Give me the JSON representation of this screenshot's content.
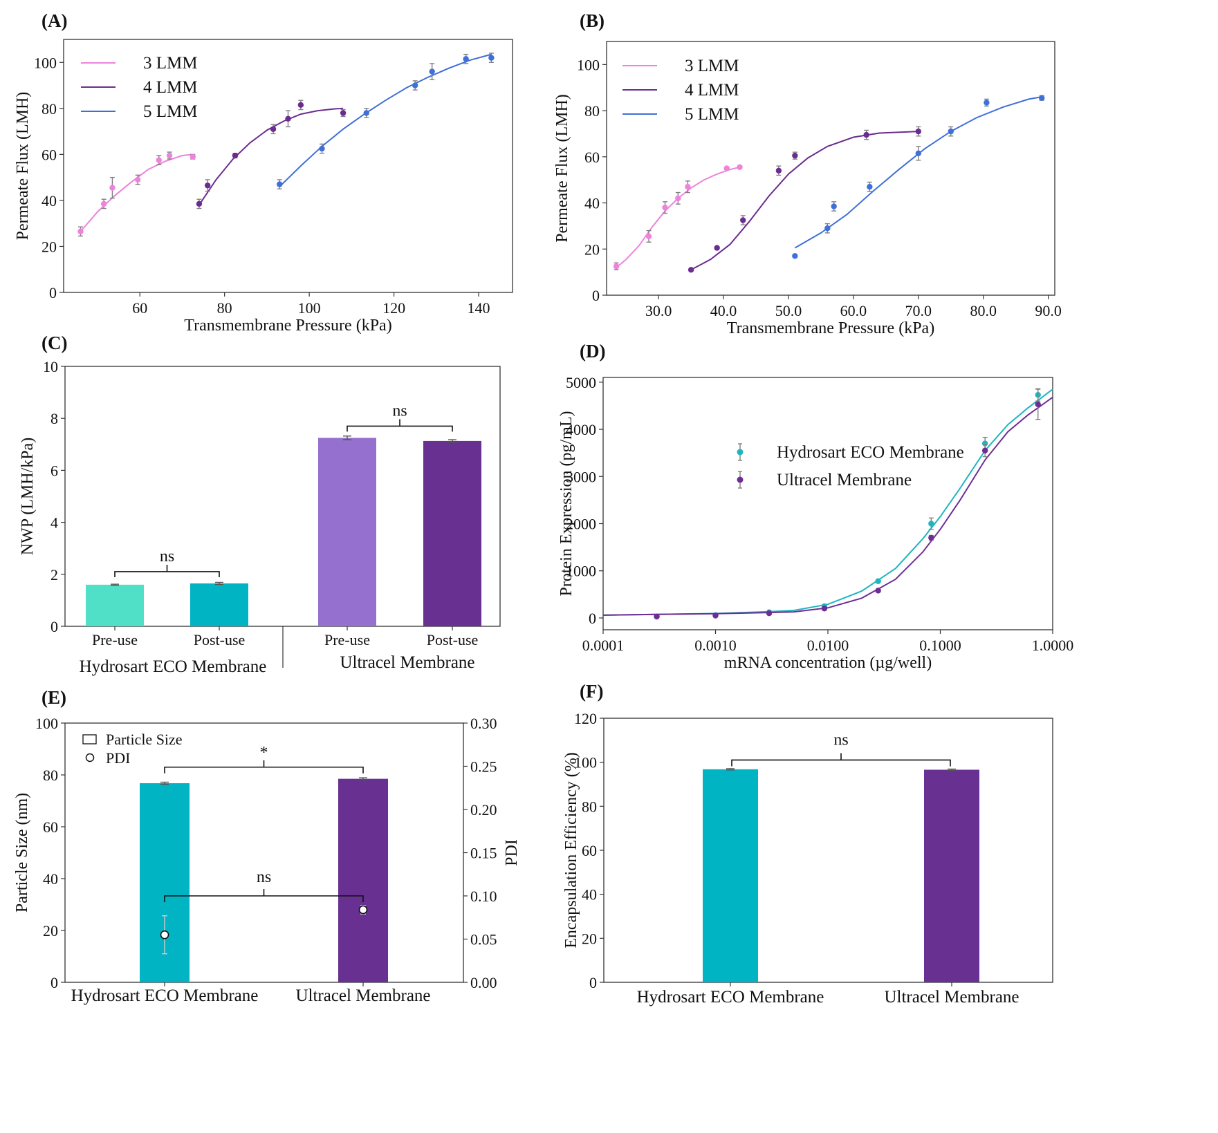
{
  "figure": {
    "panels": [
      "(A)",
      "(B)",
      "(C)",
      "(D)",
      "(E)",
      "(F)"
    ]
  },
  "colors": {
    "lmm3": "#ee82dc",
    "lmm4": "#6b2c8f",
    "lmm5": "#3f6fd8",
    "teal": "#00b4c4",
    "teal_light": "#50e0c8",
    "purple": "#683191",
    "purple_light": "#9570cf",
    "errbar": "#808080"
  },
  "chart_data": [
    {
      "id": "A",
      "label": "(A)",
      "type": "scatter",
      "xlabel": "Transmembrane Pressure (kPa)",
      "ylabel": "Permeate Flux (LMH)",
      "xlim": [
        42,
        148
      ],
      "ylim": [
        0,
        110
      ],
      "xticks": [
        60,
        80,
        100,
        120,
        140
      ],
      "xtick_labels": [
        "60",
        "80",
        "100",
        "120",
        "140"
      ],
      "yticks": [
        0,
        20,
        40,
        60,
        80,
        100
      ],
      "ytick_labels": [
        "0",
        "20",
        "40",
        "60",
        "80",
        "100"
      ],
      "legend": "top-left",
      "series": [
        {
          "name": "3 LMM",
          "color": "#ee82dc",
          "x": [
            46,
            51.5,
            53.5,
            59.5,
            64.5,
            67,
            72.5
          ],
          "y": [
            26.5,
            38.5,
            45.5,
            49,
            57.5,
            59.5,
            59
          ],
          "err": [
            2,
            2,
            4.5,
            2,
            2,
            1.5,
            1
          ],
          "fit_x": [
            46,
            50,
            54,
            58,
            62,
            66,
            70,
            72.5
          ],
          "fit_y": [
            26.5,
            35,
            42,
            48,
            53.5,
            57,
            59.5,
            60
          ]
        },
        {
          "name": "4 LMM",
          "color": "#6b2c8f",
          "x": [
            74,
            76,
            82.5,
            91.5,
            95,
            98,
            108
          ],
          "y": [
            38.5,
            46.5,
            59.5,
            71,
            75.5,
            81.5,
            78
          ],
          "err": [
            2,
            2.5,
            1,
            2,
            3.5,
            2,
            1.5
          ],
          "fit_x": [
            74,
            78,
            82,
            86,
            90,
            94,
            98,
            102,
            106,
            108
          ],
          "fit_y": [
            38,
            49,
            58,
            65,
            70.5,
            74.5,
            77.5,
            79,
            79.8,
            80
          ]
        },
        {
          "name": "5 LMM",
          "color": "#3f6fd8",
          "x": [
            93,
            103,
            113.5,
            125,
            129,
            137,
            143
          ],
          "y": [
            47,
            62.5,
            78,
            90,
            96,
            101.5,
            102
          ],
          "err": [
            2,
            2,
            2,
            2,
            3.5,
            2,
            2
          ],
          "fit_x": [
            93,
            98,
            103,
            108,
            113,
            118,
            123,
            128,
            133,
            138,
            143
          ],
          "fit_y": [
            46,
            55,
            63.5,
            71,
            77.5,
            83.5,
            89,
            93.5,
            97.5,
            101,
            103.5
          ]
        }
      ]
    },
    {
      "id": "B",
      "label": "(B)",
      "type": "scatter",
      "xlabel": "Transmembrane Pressure (kPa)",
      "ylabel": "Permeate Flux (LMH)",
      "xlim": [
        22,
        91
      ],
      "ylim": [
        0,
        110
      ],
      "xticks": [
        30,
        40,
        50,
        60,
        70,
        80,
        90
      ],
      "xtick_labels": [
        "30.0",
        "40.0",
        "50.0",
        "60.0",
        "70.0",
        "80.0",
        "90.0"
      ],
      "yticks": [
        0,
        20,
        40,
        60,
        80,
        100
      ],
      "ytick_labels": [
        "0",
        "20",
        "40",
        "60",
        "80",
        "100"
      ],
      "legend": "top-left",
      "series": [
        {
          "name": "3 LMM",
          "color": "#ee82dc",
          "x": [
            23.5,
            28.5,
            31,
            33,
            34.5,
            40.5,
            42.5
          ],
          "y": [
            12.5,
            25.5,
            38,
            42,
            47,
            55,
            55.5
          ],
          "err": [
            1.5,
            2.5,
            2.5,
            2.5,
            2.5,
            0.5,
            0.5
          ],
          "fit_x": [
            23.5,
            25,
            27,
            29,
            31,
            33,
            35,
            37,
            39,
            41,
            42.5
          ],
          "fit_y": [
            12,
            15.5,
            21.5,
            29.5,
            36.5,
            42,
            46.5,
            50,
            52.5,
            54.5,
            55.5
          ]
        },
        {
          "name": "4 LMM",
          "color": "#6b2c8f",
          "x": [
            35,
            39,
            43,
            48.5,
            51,
            62,
            70
          ],
          "y": [
            11,
            20.5,
            32.5,
            54,
            60.5,
            69.5,
            71
          ],
          "err": [
            0.5,
            0.5,
            2,
            2,
            1.5,
            2,
            2
          ],
          "fit_x": [
            35,
            38,
            41,
            44,
            47,
            50,
            53,
            56,
            60,
            64,
            70
          ],
          "fit_y": [
            11,
            15.5,
            22,
            32,
            43,
            52.5,
            59.5,
            64.5,
            68.5,
            70.3,
            71
          ]
        },
        {
          "name": "5 LMM",
          "color": "#3f6fd8",
          "x": [
            51,
            56,
            57,
            62.5,
            70,
            75,
            80.5,
            89
          ],
          "y": [
            17,
            29,
            38.5,
            47,
            61.5,
            71,
            83.5,
            85.5
          ],
          "err": [
            0.5,
            2,
            2,
            2,
            3,
            2,
            1.5,
            1
          ],
          "fit_x": [
            51,
            55,
            59,
            63,
            67,
            71,
            75,
            79,
            83,
            87,
            89
          ],
          "fit_y": [
            20.5,
            27,
            35,
            45,
            54.5,
            63.5,
            71,
            77,
            81.5,
            85,
            86
          ]
        }
      ]
    },
    {
      "id": "C",
      "label": "(C)",
      "type": "bar",
      "ylabel": "NWP (LMH/kPa)",
      "ylim": [
        0,
        10
      ],
      "yticks": [
        0,
        2,
        4,
        6,
        8,
        10
      ],
      "ytick_labels": [
        "0",
        "2",
        "4",
        "6",
        "8",
        "10"
      ],
      "categories": [
        "Pre-use",
        "Post-use",
        "Pre-use",
        "Post-use"
      ],
      "values": [
        1.6,
        1.65,
        7.25,
        7.13
      ],
      "errors": [
        0.02,
        0.04,
        0.07,
        0.05
      ],
      "colors": [
        "#50e0c8",
        "#00b4c4",
        "#9570cf",
        "#683191"
      ],
      "groups": [
        "Hydrosart ECO Membrane",
        "Ultracel Membrane"
      ],
      "significance": [
        {
          "between": [
            0,
            1
          ],
          "text": "ns"
        },
        {
          "between": [
            2,
            3
          ],
          "text": "ns"
        }
      ]
    },
    {
      "id": "D",
      "label": "(D)",
      "type": "scatter",
      "xlabel": "mRNA concentration (µg/well)",
      "ylabel": "Protein Expression (pg/mL)",
      "xscale": "log",
      "xlim": [
        0.0001,
        1.0
      ],
      "ylim": [
        -250,
        5100
      ],
      "xticks": [
        0.0001,
        0.001,
        0.01,
        0.1,
        1.0
      ],
      "xtick_labels": [
        "0.0001",
        "0.0010",
        "0.0100",
        "0.1000",
        "1.0000"
      ],
      "yticks": [
        0,
        1000,
        2000,
        3000,
        4000,
        5000
      ],
      "ytick_labels": [
        "0",
        "1000",
        "2000",
        "3000",
        "4000",
        "5000"
      ],
      "legend": "top-left",
      "series": [
        {
          "name": "Hydrosart ECO Membrane",
          "color": "#1fb5c0",
          "x": [
            0.0003,
            0.001,
            0.003,
            0.0093,
            0.028,
            0.083,
            0.25,
            0.74
          ],
          "y": [
            30,
            60,
            120,
            250,
            780,
            2000,
            3700,
            4730
          ],
          "err": [
            10,
            10,
            20,
            25,
            30,
            120,
            130,
            130
          ],
          "fit_x": [
            0.0001,
            0.0003,
            0.001,
            0.003,
            0.005,
            0.01,
            0.02,
            0.04,
            0.07,
            0.1,
            0.15,
            0.25,
            0.4,
            0.6,
            1.0
          ],
          "fit_y": [
            60,
            75,
            95,
            135,
            160,
            290,
            570,
            1050,
            1680,
            2150,
            2750,
            3550,
            4100,
            4450,
            4850
          ]
        },
        {
          "name": "Ultracel Membrane",
          "color": "#6d2d95",
          "x": [
            0.0003,
            0.001,
            0.003,
            0.0093,
            0.028,
            0.083,
            0.25,
            0.74
          ],
          "y": [
            30,
            50,
            100,
            200,
            580,
            1700,
            3550,
            4530
          ],
          "err": [
            10,
            10,
            15,
            20,
            25,
            50,
            130,
            320
          ],
          "fit_x": [
            0.0001,
            0.0003,
            0.001,
            0.003,
            0.005,
            0.01,
            0.02,
            0.04,
            0.07,
            0.1,
            0.15,
            0.25,
            0.4,
            0.6,
            1.0
          ],
          "fit_y": [
            60,
            75,
            90,
            115,
            130,
            215,
            420,
            820,
            1400,
            1880,
            2500,
            3350,
            3950,
            4300,
            4680
          ]
        }
      ]
    },
    {
      "id": "E",
      "label": "(E)",
      "type": "bar",
      "ylabel": "Particle Size (nm)",
      "ylabel_right": "PDI",
      "ylim": [
        0,
        100
      ],
      "ylim_right": [
        0,
        0.3
      ],
      "yticks": [
        0,
        20,
        40,
        60,
        80,
        100
      ],
      "ytick_labels": [
        "0",
        "20",
        "40",
        "60",
        "80",
        "100"
      ],
      "yticks_right": [
        0,
        0.05,
        0.1,
        0.15,
        0.2,
        0.25,
        0.3
      ],
      "ytick_labels_right": [
        "0.00",
        "0.05",
        "0.10",
        "0.15",
        "0.20",
        "0.25",
        "0.30"
      ],
      "categories": [
        "Hydrosart ECO Membrane",
        "Ultracel Membrane"
      ],
      "values": [
        76.8,
        78.5
      ],
      "errors": [
        0.4,
        0.4
      ],
      "colors": [
        "#00b4c4",
        "#683191"
      ],
      "pdi_values": [
        0.055,
        0.084
      ],
      "pdi_errors": [
        0.022,
        0.005
      ],
      "legend": "top-left",
      "legend_entries": [
        "Particle Size",
        "PDI"
      ],
      "significance": [
        {
          "between": [
            0,
            1
          ],
          "text": "*",
          "axis": "left",
          "level": 83
        },
        {
          "between": [
            0,
            1
          ],
          "text": "ns",
          "axis": "right",
          "level": 0.1
        }
      ]
    },
    {
      "id": "F",
      "label": "(F)",
      "type": "bar",
      "ylabel": "Encapsulation Efficiency (%)",
      "ylim": [
        0,
        120
      ],
      "yticks": [
        0,
        20,
        40,
        60,
        80,
        100,
        120
      ],
      "ytick_labels": [
        "0",
        "20",
        "40",
        "60",
        "80",
        "100",
        "120"
      ],
      "categories": [
        "Hydrosart ECO Membrane",
        "Ultracel Membrane"
      ],
      "values": [
        96.8,
        96.6
      ],
      "errors": [
        0.3,
        0.3
      ],
      "colors": [
        "#00b4c4",
        "#683191"
      ],
      "significance": [
        {
          "between": [
            0,
            1
          ],
          "text": "ns",
          "level": 101
        }
      ]
    }
  ]
}
